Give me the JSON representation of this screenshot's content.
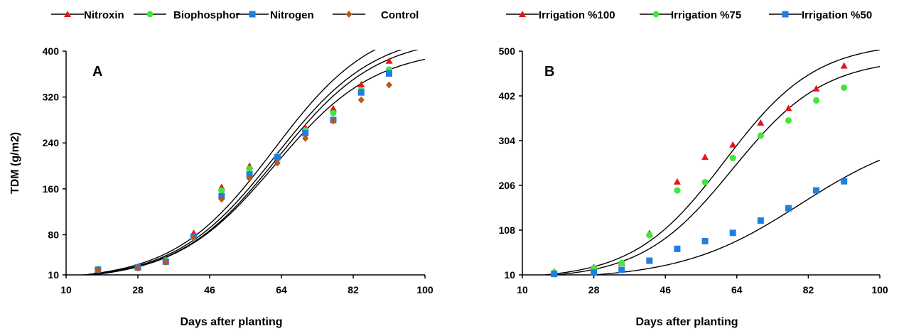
{
  "chart_data": [
    {
      "type": "scatter",
      "panel_label": "A",
      "title": "",
      "xlabel": "Days after planting",
      "ylabel": "TDM (g/m2)",
      "xlim": [
        10,
        100
      ],
      "ylim": [
        10,
        400
      ],
      "xticks": [
        10,
        28,
        46,
        64,
        82,
        100
      ],
      "yticks": [
        10,
        80,
        160,
        240,
        320,
        400
      ],
      "grid": false,
      "legend_position": "top",
      "series": [
        {
          "name": "Nitroxin",
          "marker": "triangle",
          "color": "#e8141a",
          "x": [
            18,
            28,
            35,
            42,
            49,
            56,
            63,
            70,
            77,
            84,
            91
          ],
          "y": [
            18,
            24,
            37,
            83,
            163,
            200,
            219,
            267,
            300,
            342,
            383
          ],
          "fit": {
            "K": 455,
            "x0": 62,
            "s": 12.5
          }
        },
        {
          "name": "Biophosphor",
          "marker": "circle",
          "color": "#3ee83a",
          "x": [
            18,
            28,
            35,
            42,
            49,
            56,
            63,
            70,
            77,
            84,
            91
          ],
          "y": [
            20,
            22,
            35,
            76,
            157,
            195,
            217,
            262,
            292,
            332,
            368
          ],
          "fit": {
            "K": 435,
            "x0": 62.5,
            "s": 12.5
          }
        },
        {
          "name": "Nitrogen",
          "marker": "square",
          "color": "#1f7fe0",
          "x": [
            18,
            28,
            35,
            42,
            49,
            56,
            63,
            70,
            77,
            84,
            91
          ],
          "y": [
            19,
            23,
            33,
            77,
            147,
            185,
            215,
            257,
            280,
            328,
            361
          ],
          "fit": {
            "K": 427,
            "x0": 63,
            "s": 12.5
          }
        },
        {
          "name": "Control",
          "marker": "diamond",
          "color": "#c1561a",
          "x": [
            18,
            28,
            35,
            42,
            49,
            56,
            63,
            70,
            77,
            84,
            91
          ],
          "y": [
            18,
            22,
            32,
            75,
            142,
            178,
            205,
            248,
            278,
            315,
            341
          ],
          "fit": {
            "K": 405,
            "x0": 62.5,
            "s": 12.5
          }
        }
      ]
    },
    {
      "type": "scatter",
      "panel_label": "B",
      "title": "",
      "xlabel": "Days after planting",
      "ylabel": "",
      "xlim": [
        10,
        100
      ],
      "ylim": [
        10,
        500
      ],
      "xticks": [
        10,
        28,
        46,
        64,
        82,
        100
      ],
      "yticks": [
        10,
        108,
        206,
        304,
        402,
        500
      ],
      "grid": false,
      "legend_position": "top",
      "series": [
        {
          "name": "Irrigation %100",
          "marker": "triangle",
          "color": "#e8141a",
          "x": [
            18,
            28,
            35,
            42,
            49,
            56,
            63,
            70,
            77,
            84,
            91
          ],
          "y": [
            17,
            27,
            36,
            101,
            214,
            268,
            295,
            343,
            375,
            418,
            468
          ],
          "fit": {
            "K": 520,
            "x0": 61,
            "s": 11.5
          }
        },
        {
          "name": "Irrigation %75",
          "marker": "circle",
          "color": "#3ee83a",
          "x": [
            18,
            28,
            35,
            42,
            49,
            56,
            63,
            70,
            77,
            84,
            91
          ],
          "y": [
            15,
            25,
            36,
            97,
            195,
            213,
            266,
            315,
            348,
            392,
            420
          ],
          "fit": {
            "K": 485,
            "x0": 63,
            "s": 11.5
          }
        },
        {
          "name": "Irrigation %50",
          "marker": "square",
          "color": "#1f7fe0",
          "x": [
            18,
            28,
            35,
            42,
            49,
            56,
            63,
            70,
            77,
            84,
            91
          ],
          "y": [
            12,
            15,
            21,
            41,
            67,
            84,
            102,
            129,
            156,
            195,
            215
          ],
          "fit": {
            "K": 330,
            "x0": 80,
            "s": 15
          }
        }
      ]
    }
  ]
}
